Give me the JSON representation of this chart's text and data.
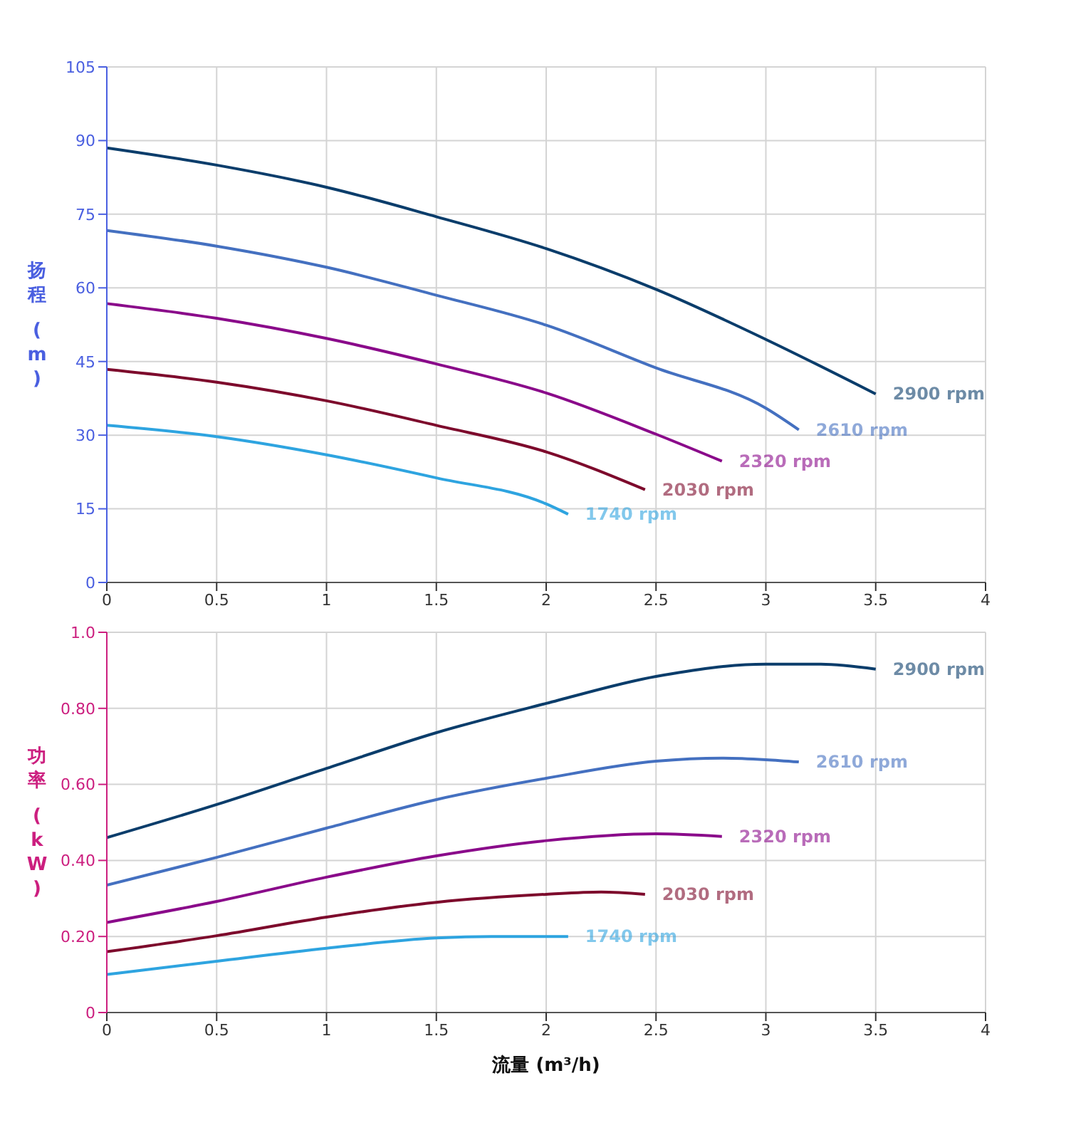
{
  "chart_data": [
    {
      "type": "line",
      "ylabel": "扬程 (m)",
      "xlim": [
        0,
        4
      ],
      "xticks": [
        0,
        0.5,
        1,
        1.5,
        2,
        2.5,
        3,
        3.5,
        4
      ],
      "ylim": [
        0,
        105
      ],
      "yticks": [
        0,
        15,
        30,
        45,
        60,
        75,
        90,
        105
      ],
      "grid": true,
      "marker": "none",
      "line_style": "solid",
      "series": [
        {
          "name": "2900 rpm",
          "color": "#0b3d6b",
          "x": [
            0,
            0.5,
            1,
            1.5,
            2,
            2.5,
            3,
            3.5
          ],
          "values": [
            88.5,
            85,
            80.5,
            74.5,
            68,
            59.7,
            49.5,
            38.4
          ]
        },
        {
          "name": "2610 rpm",
          "color": "#4470c0",
          "x": [
            0,
            0.5,
            1,
            1.5,
            2,
            2.5,
            3,
            3.15
          ],
          "values": [
            71.7,
            68.5,
            64.2,
            58.5,
            52.4,
            43.7,
            35.5,
            31.1
          ]
        },
        {
          "name": "2320 rpm",
          "color": "#8a0a8a",
          "x": [
            0,
            0.5,
            1,
            1.5,
            2,
            2.5,
            2.8
          ],
          "values": [
            56.8,
            53.8,
            49.7,
            44.5,
            38.6,
            30.2,
            24.7
          ]
        },
        {
          "name": "2030 rpm",
          "color": "#7d0a2c",
          "x": [
            0,
            0.5,
            1,
            1.5,
            2,
            2.45
          ],
          "values": [
            43.4,
            40.8,
            37,
            32,
            26.6,
            18.9
          ]
        },
        {
          "name": "1740 rpm",
          "color": "#2ea4e0",
          "x": [
            0,
            0.5,
            1,
            1.5,
            2,
            2.1
          ],
          "values": [
            32,
            29.7,
            26,
            21.3,
            16,
            13.9
          ]
        }
      ]
    },
    {
      "type": "line",
      "ylabel": "功率 (kW)",
      "xlabel": "流量 (m³/h)",
      "xlim": [
        0,
        4
      ],
      "xticks": [
        0,
        0.5,
        1,
        1.5,
        2,
        2.5,
        3,
        3.5,
        4
      ],
      "ylim": [
        0,
        1
      ],
      "yticks": [
        0,
        {
          "value": 0.2,
          "label": "0.20"
        },
        {
          "value": 0.4,
          "label": "0.40"
        },
        {
          "value": 0.6,
          "label": "0.60"
        },
        {
          "value": 0.8,
          "label": "0.80"
        },
        {
          "value": 1,
          "label": "1.0"
        }
      ],
      "grid": true,
      "marker": "none",
      "line_style": "solid",
      "series": [
        {
          "name": "2900 rpm",
          "color": "#0b3d6b",
          "x": [
            0,
            0.5,
            1,
            1.5,
            2,
            2.5,
            3,
            3.25,
            3.5
          ],
          "values": [
            0.46,
            0.547,
            0.642,
            0.736,
            0.813,
            0.884,
            0.916,
            0.916,
            0.903
          ]
        },
        {
          "name": "2610 rpm",
          "color": "#4470c0",
          "x": [
            0,
            0.5,
            1,
            1.5,
            2,
            2.5,
            2.8,
            3,
            3.15
          ],
          "values": [
            0.335,
            0.408,
            0.485,
            0.56,
            0.616,
            0.661,
            0.669,
            0.665,
            0.659
          ]
        },
        {
          "name": "2320 rpm",
          "color": "#8a0a8a",
          "x": [
            0,
            0.5,
            1,
            1.5,
            2,
            2.5,
            2.8
          ],
          "values": [
            0.237,
            0.292,
            0.356,
            0.412,
            0.452,
            0.47,
            0.463
          ]
        },
        {
          "name": "2030 rpm",
          "color": "#7d0a2c",
          "x": [
            0,
            0.5,
            1,
            1.5,
            2,
            2.25,
            2.45
          ],
          "values": [
            0.16,
            0.202,
            0.251,
            0.29,
            0.311,
            0.317,
            0.311
          ]
        },
        {
          "name": "1740 rpm",
          "color": "#2ea4e0",
          "x": [
            0,
            0.5,
            1,
            1.5,
            1.75,
            2,
            2.1
          ],
          "values": [
            0.1,
            0.135,
            0.169,
            0.196,
            0.2,
            0.2,
            0.2
          ]
        }
      ]
    }
  ]
}
